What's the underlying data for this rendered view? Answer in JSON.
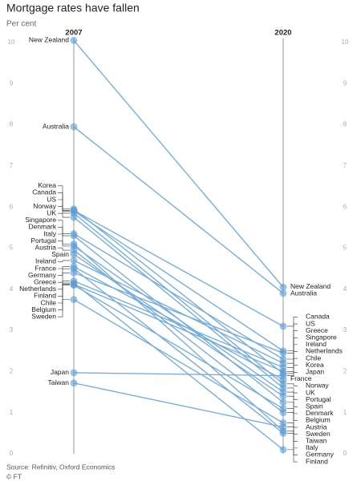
{
  "chart_data": {
    "type": "slope",
    "title": "Mortgage rates have fallen",
    "subtitle": "Per cent",
    "source": "Source: Refinitiv, Oxford Economics",
    "credit": "© FT",
    "categories": [
      "2007",
      "2020"
    ],
    "ylim": [
      0,
      10
    ],
    "yticks": [
      0,
      1,
      2,
      3,
      4,
      5,
      6,
      7,
      8,
      9,
      10
    ],
    "color": "#5b9bd5",
    "series": [
      {
        "name": "New Zealand",
        "values": [
          10.05,
          4.05
        ]
      },
      {
        "name": "Australia",
        "values": [
          7.95,
          3.9
        ]
      },
      {
        "name": "Korea",
        "values": [
          5.95,
          1.95
        ]
      },
      {
        "name": "Canada",
        "values": [
          5.92,
          3.1
        ]
      },
      {
        "name": "US",
        "values": [
          5.9,
          2.5
        ]
      },
      {
        "name": "Norway",
        "values": [
          5.85,
          1.7
        ]
      },
      {
        "name": "UK",
        "values": [
          5.75,
          1.6
        ]
      },
      {
        "name": "Singapore",
        "values": [
          5.35,
          2.3
        ]
      },
      {
        "name": "Denmark",
        "values": [
          5.3,
          1.25
        ]
      },
      {
        "name": "Italy",
        "values": [
          5.1,
          0.55
        ]
      },
      {
        "name": "Portugal",
        "values": [
          5.05,
          1.5
        ]
      },
      {
        "name": "Austria",
        "values": [
          4.95,
          1.0
        ]
      },
      {
        "name": "Spain",
        "values": [
          4.85,
          1.4
        ]
      },
      {
        "name": "Ireland",
        "values": [
          4.7,
          2.2
        ]
      },
      {
        "name": "France",
        "values": [
          4.55,
          1.8
        ]
      },
      {
        "name": "Germany",
        "values": [
          4.5,
          0.5
        ]
      },
      {
        "name": "Greece",
        "values": [
          4.4,
          2.45
        ]
      },
      {
        "name": "Netherlands",
        "values": [
          4.2,
          2.1
        ]
      },
      {
        "name": "Finland",
        "values": [
          4.15,
          0.1
        ]
      },
      {
        "name": "Chile",
        "values": [
          4.12,
          2.0
        ]
      },
      {
        "name": "Belgium",
        "values": [
          4.1,
          1.1
        ]
      },
      {
        "name": "Sweden",
        "values": [
          3.75,
          0.75
        ]
      },
      {
        "name": "Japan",
        "values": [
          1.97,
          1.9
        ]
      },
      {
        "name": "Taiwan",
        "values": [
          1.72,
          0.65
        ]
      }
    ]
  }
}
